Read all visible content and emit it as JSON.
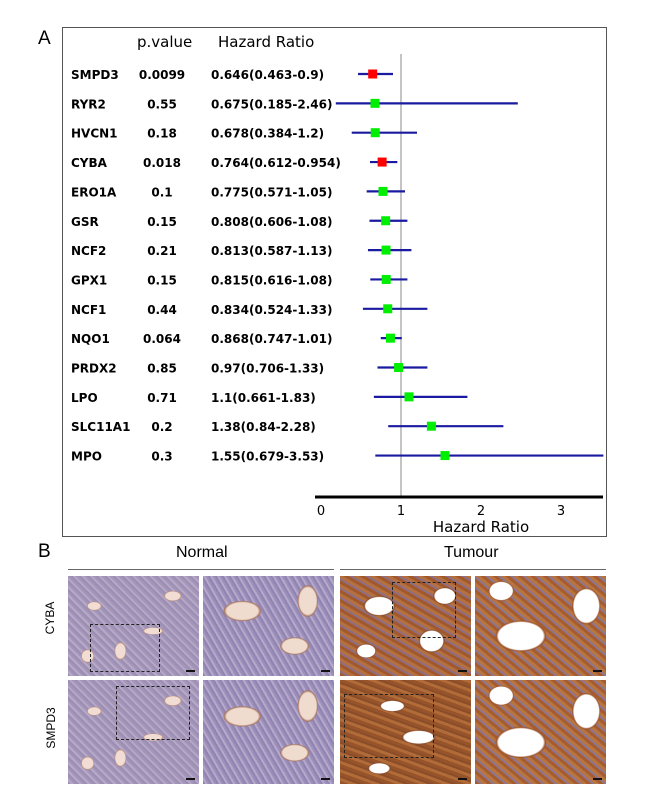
{
  "panel_a": {
    "letter": "A",
    "headers": {
      "pvalue": "p.value",
      "hr": "Hazard Ratio"
    },
    "xaxis_label": "Hazard Ratio"
  },
  "panel_b": {
    "letter": "B",
    "group_normal": "Normal",
    "group_tumour": "Tumour",
    "row_labels": [
      "CYBA",
      "SMPD3"
    ]
  },
  "chart_data": {
    "type": "forest",
    "xlabel": "Hazard Ratio",
    "xlim": [
      -0.05,
      3.55
    ],
    "xticks": [
      0,
      1,
      2,
      3
    ],
    "reference_line": 1,
    "colors": {
      "significant": "#ff0000",
      "nonsignificant": "#00ee00",
      "ci_line": "#1a1aa0"
    },
    "rows": [
      {
        "gene": "SMPD3",
        "pvalue": "0.0099",
        "hr_text": "0.646(0.463-0.9)",
        "hr": 0.646,
        "lo": 0.463,
        "hi": 0.9,
        "significant": true
      },
      {
        "gene": "RYR2",
        "pvalue": "0.55",
        "hr_text": "0.675(0.185-2.46)",
        "hr": 0.675,
        "lo": 0.185,
        "hi": 2.46,
        "significant": false
      },
      {
        "gene": "HVCN1",
        "pvalue": "0.18",
        "hr_text": "0.678(0.384-1.2)",
        "hr": 0.678,
        "lo": 0.384,
        "hi": 1.2,
        "significant": false
      },
      {
        "gene": "CYBA",
        "pvalue": "0.018",
        "hr_text": "0.764(0.612-0.954)",
        "hr": 0.764,
        "lo": 0.612,
        "hi": 0.954,
        "significant": true
      },
      {
        "gene": "ERO1A",
        "pvalue": "0.1",
        "hr_text": "0.775(0.571-1.05)",
        "hr": 0.775,
        "lo": 0.571,
        "hi": 1.05,
        "significant": false
      },
      {
        "gene": "GSR",
        "pvalue": "0.15",
        "hr_text": "0.808(0.606-1.08)",
        "hr": 0.808,
        "lo": 0.606,
        "hi": 1.08,
        "significant": false
      },
      {
        "gene": "NCF2",
        "pvalue": "0.21",
        "hr_text": "0.813(0.587-1.13)",
        "hr": 0.813,
        "lo": 0.587,
        "hi": 1.13,
        "significant": false
      },
      {
        "gene": "GPX1",
        "pvalue": "0.15",
        "hr_text": "0.815(0.616-1.08)",
        "hr": 0.815,
        "lo": 0.616,
        "hi": 1.08,
        "significant": false
      },
      {
        "gene": "NCF1",
        "pvalue": "0.44",
        "hr_text": "0.834(0.524-1.33)",
        "hr": 0.834,
        "lo": 0.524,
        "hi": 1.33,
        "significant": false
      },
      {
        "gene": "NQO1",
        "pvalue": "0.064",
        "hr_text": "0.868(0.747-1.01)",
        "hr": 0.868,
        "lo": 0.747,
        "hi": 1.01,
        "significant": false
      },
      {
        "gene": "PRDX2",
        "pvalue": "0.85",
        "hr_text": "0.97(0.706-1.33)",
        "hr": 0.97,
        "lo": 0.706,
        "hi": 1.33,
        "significant": false
      },
      {
        "gene": "LPO",
        "pvalue": "0.71",
        "hr_text": "1.1(0.661-1.83)",
        "hr": 1.1,
        "lo": 0.661,
        "hi": 1.83,
        "significant": false
      },
      {
        "gene": "SLC11A1",
        "pvalue": "0.2",
        "hr_text": "1.38(0.84-2.28)",
        "hr": 1.38,
        "lo": 0.84,
        "hi": 2.28,
        "significant": false
      },
      {
        "gene": "MPO",
        "pvalue": "0.3",
        "hr_text": "1.55(0.679-3.53)",
        "hr": 1.55,
        "lo": 0.679,
        "hi": 3.53,
        "significant": false
      }
    ]
  }
}
